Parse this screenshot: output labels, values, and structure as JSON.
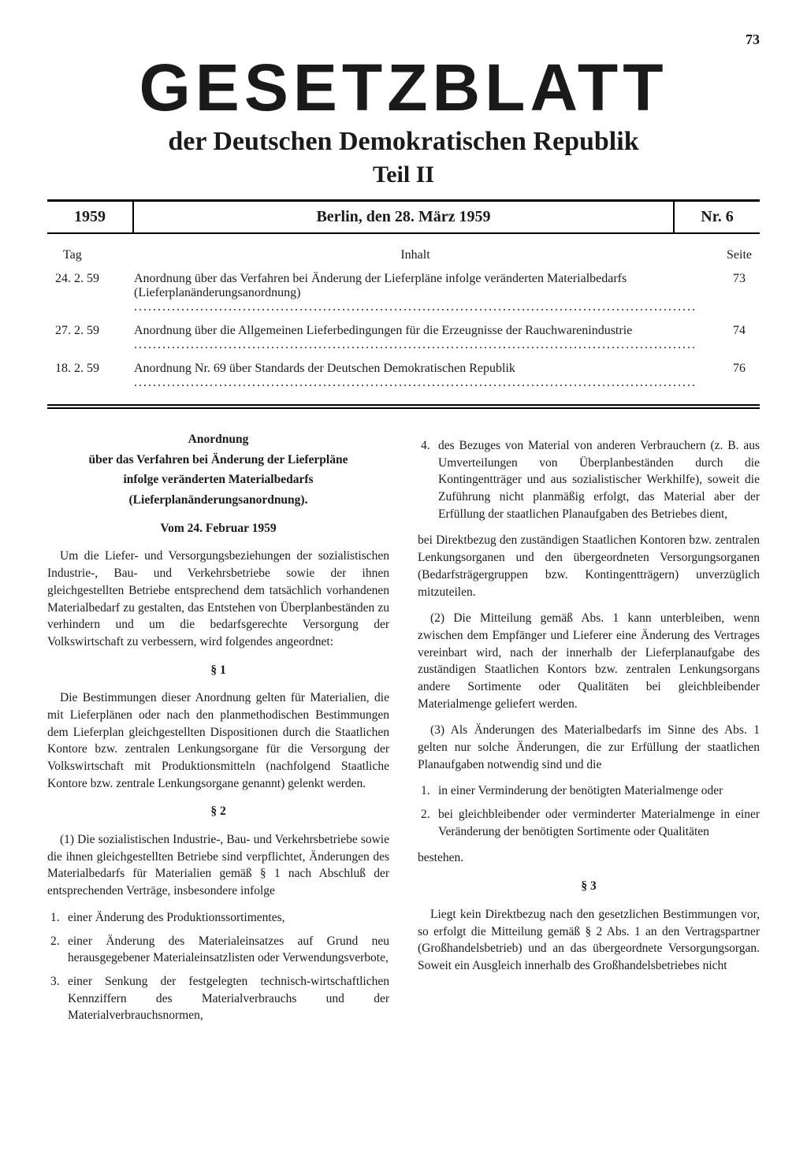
{
  "page_number": "73",
  "masthead": {
    "title": "GESETZBLATT",
    "subtitle": "der Deutschen Demokratischen Republik",
    "part": "Teil II"
  },
  "dateline": {
    "year": "1959",
    "city_date": "Berlin, den 28. März 1959",
    "issue": "Nr. 6"
  },
  "contents": {
    "header": {
      "tag": "Tag",
      "inhalt": "Inhalt",
      "seite": "Seite"
    },
    "rows": [
      {
        "date": "24. 2. 59",
        "desc": "Anordnung über das Verfahren bei Änderung der Lieferpläne infolge veränderten Materialbedarfs (Lieferplanänderungsanordnung)",
        "page": "73"
      },
      {
        "date": "27. 2. 59",
        "desc": "Anordnung über die Allgemeinen Lieferbedingungen für die Erzeugnisse der Rauchwarenindustrie",
        "page": "74"
      },
      {
        "date": "18. 2. 59",
        "desc": "Anordnung Nr. 69 über Standards der Deutschen Demokratischen Republik",
        "page": "76"
      }
    ]
  },
  "article": {
    "title_l1": "Anordnung",
    "title_l2": "über das Verfahren bei Änderung der Lieferpläne",
    "title_l3": "infolge veränderten Materialbedarfs",
    "title_l4": "(Lieferplanänderungsanordnung).",
    "date": "Vom 24. Februar 1959",
    "preamble": "Um die Liefer- und Versorgungsbeziehungen der sozialistischen Industrie-, Bau- und Verkehrsbetriebe sowie der ihnen gleichgestellten Betriebe entsprechend dem tatsächlich vorhandenen Materialbedarf zu gestalten, das Entstehen von Überplanbeständen zu verhindern und um die bedarfsgerechte Versorgung der Volkswirtschaft zu verbessern, wird folgendes angeordnet:",
    "s1": "§ 1",
    "s1_text": "Die Bestimmungen dieser Anordnung gelten für Materialien, die mit Lieferplänen oder nach den planmethodischen Bestimmungen dem Lieferplan gleichgestellten Dispositionen durch die Staatlichen Kontore bzw. zentralen Lenkungsorgane für die Versorgung der Volkswirtschaft mit Produktionsmitteln (nachfolgend Staatliche Kontore bzw. zentrale Lenkungsorgane genannt) gelenkt werden.",
    "s2": "§ 2",
    "s2_1_intro": "(1) Die sozialistischen Industrie-, Bau- und Verkehrsbetriebe sowie die ihnen gleichgestellten Betriebe sind verpflichtet, Änderungen des Materialbedarfs für Materialien gemäß § 1 nach Abschluß der entsprechenden Verträge, insbesondere infolge",
    "s2_list": [
      {
        "n": "1.",
        "t": "einer Änderung des Produktionssortimentes,"
      },
      {
        "n": "2.",
        "t": "einer Änderung des Materialeinsatzes auf Grund neu herausgegebener Materialeinsatzlisten oder Verwendungsverbote,"
      },
      {
        "n": "3.",
        "t": "einer Senkung der festgelegten technisch-wirtschaftlichen Kennziffern des Materialverbrauchs und der Materialverbrauchsnormen,"
      }
    ],
    "s2_list4": {
      "n": "4.",
      "t": "des Bezuges von Material von anderen Verbrauchern (z. B. aus Umverteilungen von Überplanbeständen durch die Kontingentträger und aus sozialistischer Werkhilfe), soweit die Zuführung nicht planmäßig erfolgt, das Material aber der Erfüllung der staatlichen Planaufgaben des Betriebes dient,"
    },
    "s2_tail": "bei Direktbezug den zuständigen Staatlichen Kontoren bzw. zentralen Lenkungsorganen und den übergeordneten Versorgungsorganen (Bedarfsträgergruppen bzw. Kontingentträgern) unverzüglich mitzuteilen.",
    "s2_2": "(2) Die Mitteilung gemäß Abs. 1 kann unterbleiben, wenn zwischen dem Empfänger und Lieferer eine Änderung des Vertrages vereinbart wird, nach der innerhalb der Lieferplanaufgabe des zuständigen Staatlichen Kontors bzw. zentralen Lenkungsorgans andere Sortimente oder Qualitäten bei gleichbleibender Materialmenge geliefert werden.",
    "s2_3_intro": "(3) Als Änderungen des Materialbedarfs im Sinne des Abs. 1 gelten nur solche Änderungen, die zur Erfüllung der staatlichen Planaufgaben notwendig sind und die",
    "s2_3_list": [
      {
        "n": "1.",
        "t": "in einer Verminderung der benötigten Materialmenge oder"
      },
      {
        "n": "2.",
        "t": "bei gleichbleibender oder verminderter Materialmenge in einer Veränderung der benötigten Sortimente oder Qualitäten"
      }
    ],
    "s2_3_tail": "bestehen.",
    "s3": "§ 3",
    "s3_text": "Liegt kein Direktbezug nach den gesetzlichen Bestimmungen vor, so erfolgt die Mitteilung gemäß § 2 Abs. 1 an den Vertragspartner (Großhandelsbetrieb) und an das übergeordnete Versorgungsorgan. Soweit ein Ausgleich innerhalb des Großhandelsbetriebes nicht"
  }
}
